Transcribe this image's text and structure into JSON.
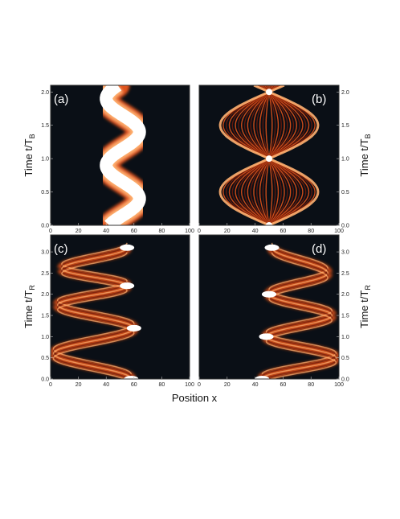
{
  "figure": {
    "xlabel": "Position x",
    "ylabel_top_base": "Time t/T",
    "ylabel_top_sub": "B",
    "ylabel_bottom_base": "Time t/T",
    "ylabel_bottom_sub": "R",
    "colors": {
      "background": "#0a0f16",
      "low": "#6b1a0a",
      "mid": "#e0521a",
      "high": "#ffb070",
      "peak": "#ffffff"
    }
  },
  "chart_data": [
    {
      "type": "heatmap",
      "panel": "(a)",
      "xlim": [
        0,
        100
      ],
      "ylim": [
        0,
        2.1
      ],
      "xticks": [
        "0",
        "20",
        "40",
        "60",
        "80",
        "100"
      ],
      "yticks": [
        "0.0",
        "0.5",
        "1.0",
        "1.5",
        "2.0"
      ],
      "yaxis_side": "left",
      "pattern": "oscillating-packet",
      "center_x": 52,
      "amplitude_x": 12,
      "period_t": 1.0
    },
    {
      "type": "heatmap",
      "panel": "(b)",
      "xlim": [
        0,
        100
      ],
      "ylim": [
        0,
        2.1
      ],
      "xticks": [
        "0",
        "20",
        "40",
        "60",
        "80",
        "100"
      ],
      "yticks": [
        "0.0",
        "0.5",
        "1.0",
        "1.5",
        "2.0"
      ],
      "yaxis_side": "right",
      "pattern": "breathing",
      "center_x": 50,
      "max_half_width_x": 35,
      "period_t": 1.0
    },
    {
      "type": "heatmap",
      "panel": "(c)",
      "xlim": [
        0,
        100
      ],
      "ylim": [
        0,
        3.4
      ],
      "xticks": [
        "0",
        "20",
        "40",
        "60",
        "80",
        "100"
      ],
      "yticks": [
        "0.0",
        "0.5",
        "1.0",
        "1.5",
        "2.0",
        "2.5",
        "3.0"
      ],
      "yaxis_side": "left",
      "pattern": "reflecting-left",
      "turning_points": [
        [
          0.0,
          58
        ],
        [
          0.6,
          2
        ],
        [
          1.2,
          60
        ],
        [
          1.75,
          5
        ],
        [
          2.2,
          55
        ],
        [
          2.6,
          8
        ],
        [
          3.1,
          55
        ]
      ]
    },
    {
      "type": "heatmap",
      "panel": "(d)",
      "xlim": [
        0,
        100
      ],
      "ylim": [
        0,
        3.4
      ],
      "xticks": [
        "0",
        "20",
        "40",
        "60",
        "80",
        "100"
      ],
      "yticks": [
        "0.0",
        "0.5",
        "1.0",
        "1.5",
        "2.0",
        "2.5",
        "3.0"
      ],
      "yaxis_side": "right",
      "pattern": "reflecting-right",
      "turning_points": [
        [
          0.0,
          45
        ],
        [
          0.5,
          98
        ],
        [
          1.0,
          48
        ],
        [
          1.5,
          95
        ],
        [
          2.0,
          50
        ],
        [
          2.5,
          92
        ],
        [
          3.1,
          52
        ]
      ]
    }
  ]
}
